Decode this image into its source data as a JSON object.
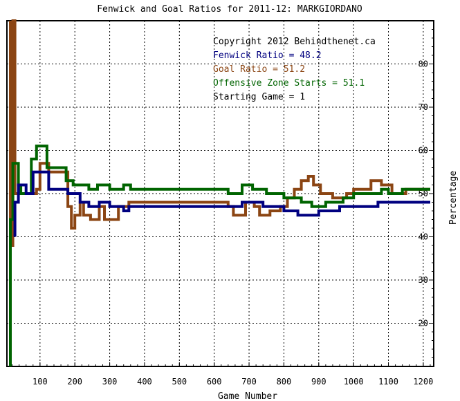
{
  "chart_data": {
    "type": "line",
    "title": "Fenwick and Goal Ratios for 2011-12: MARKGIORDANO",
    "xlabel": "Game Number",
    "ylabel": "Percentage",
    "xlim": [
      5,
      1230
    ],
    "ylim": [
      10,
      90
    ],
    "x_ticks": [
      100,
      200,
      300,
      400,
      500,
      600,
      700,
      800,
      900,
      1000,
      1100,
      1200
    ],
    "x_tick_labels": [
      "100",
      "200",
      "300",
      "400",
      "500",
      "600",
      "700",
      "800",
      "900",
      "1000",
      "1100",
      "1200"
    ],
    "y_ticks": [
      20,
      30,
      40,
      50,
      60,
      70,
      80
    ],
    "y_tick_labels": [
      "20",
      "30",
      "40",
      "50",
      "60",
      "70",
      "80"
    ],
    "y_axis_side": "right",
    "grid": true,
    "legend_placement": "top-right",
    "annotations": [
      {
        "text": "Copyright 2012 Behindthenet.ca",
        "color": "#000000"
      },
      {
        "text": "Fenwick Ratio = 48.2",
        "color": "#000080"
      },
      {
        "text": "Goal Ratio = 51.2",
        "color": "#8b4513"
      },
      {
        "text": "Offensive Zone Starts = 51.1",
        "color": "#006400"
      },
      {
        "text": "Starting Game = 1",
        "color": "#000000"
      }
    ],
    "series": [
      {
        "name": "Goal Ratio",
        "color": "#8b4513",
        "points": [
          [
            15,
            90
          ],
          [
            15,
            38
          ],
          [
            22,
            38
          ],
          [
            22,
            90
          ],
          [
            28,
            90
          ],
          [
            28,
            50
          ],
          [
            90,
            50
          ],
          [
            90,
            51
          ],
          [
            100,
            51
          ],
          [
            100,
            57
          ],
          [
            125,
            57
          ],
          [
            125,
            55
          ],
          [
            180,
            55
          ],
          [
            180,
            47
          ],
          [
            190,
            47
          ],
          [
            190,
            42
          ],
          [
            200,
            42
          ],
          [
            200,
            45
          ],
          [
            215,
            45
          ],
          [
            215,
            48
          ],
          [
            225,
            48
          ],
          [
            225,
            45
          ],
          [
            245,
            45
          ],
          [
            245,
            44
          ],
          [
            270,
            44
          ],
          [
            270,
            47
          ],
          [
            285,
            47
          ],
          [
            285,
            44
          ],
          [
            325,
            44
          ],
          [
            325,
            47
          ],
          [
            355,
            47
          ],
          [
            355,
            48
          ],
          [
            640,
            48
          ],
          [
            640,
            47
          ],
          [
            655,
            47
          ],
          [
            655,
            45
          ],
          [
            690,
            45
          ],
          [
            690,
            48
          ],
          [
            715,
            48
          ],
          [
            715,
            47
          ],
          [
            730,
            47
          ],
          [
            730,
            45
          ],
          [
            760,
            45
          ],
          [
            760,
            46
          ],
          [
            790,
            46
          ],
          [
            790,
            47
          ],
          [
            810,
            47
          ],
          [
            810,
            49
          ],
          [
            830,
            49
          ],
          [
            830,
            51
          ],
          [
            850,
            51
          ],
          [
            850,
            53
          ],
          [
            870,
            53
          ],
          [
            870,
            54
          ],
          [
            885,
            54
          ],
          [
            885,
            52
          ],
          [
            905,
            52
          ],
          [
            905,
            50
          ],
          [
            940,
            50
          ],
          [
            940,
            49
          ],
          [
            980,
            49
          ],
          [
            980,
            50
          ],
          [
            1000,
            50
          ],
          [
            1000,
            51
          ],
          [
            1050,
            51
          ],
          [
            1050,
            53
          ],
          [
            1080,
            53
          ],
          [
            1080,
            52
          ],
          [
            1110,
            52
          ],
          [
            1110,
            50
          ],
          [
            1150,
            50
          ],
          [
            1150,
            51
          ],
          [
            1220,
            51
          ]
        ]
      },
      {
        "name": "Offensive Zone Starts",
        "color": "#006400",
        "points": [
          [
            15,
            10
          ],
          [
            15,
            44
          ],
          [
            22,
            44
          ],
          [
            22,
            57
          ],
          [
            38,
            57
          ],
          [
            38,
            52
          ],
          [
            45,
            52
          ],
          [
            45,
            50
          ],
          [
            75,
            50
          ],
          [
            75,
            58
          ],
          [
            90,
            58
          ],
          [
            90,
            61
          ],
          [
            120,
            61
          ],
          [
            120,
            56
          ],
          [
            175,
            56
          ],
          [
            175,
            53
          ],
          [
            195,
            53
          ],
          [
            195,
            52
          ],
          [
            240,
            52
          ],
          [
            240,
            51
          ],
          [
            265,
            51
          ],
          [
            265,
            52
          ],
          [
            300,
            52
          ],
          [
            300,
            51
          ],
          [
            340,
            51
          ],
          [
            340,
            52
          ],
          [
            360,
            52
          ],
          [
            360,
            51
          ],
          [
            640,
            51
          ],
          [
            640,
            50
          ],
          [
            680,
            50
          ],
          [
            680,
            52
          ],
          [
            710,
            52
          ],
          [
            710,
            51
          ],
          [
            750,
            51
          ],
          [
            750,
            50
          ],
          [
            800,
            50
          ],
          [
            800,
            49
          ],
          [
            850,
            49
          ],
          [
            850,
            48
          ],
          [
            880,
            48
          ],
          [
            880,
            47
          ],
          [
            920,
            47
          ],
          [
            920,
            48
          ],
          [
            970,
            48
          ],
          [
            970,
            49
          ],
          [
            1000,
            49
          ],
          [
            1000,
            50
          ],
          [
            1080,
            50
          ],
          [
            1080,
            51
          ],
          [
            1100,
            51
          ],
          [
            1100,
            50
          ],
          [
            1140,
            50
          ],
          [
            1140,
            51
          ],
          [
            1220,
            51
          ]
        ]
      },
      {
        "name": "Fenwick Ratio",
        "color": "#000080",
        "points": [
          [
            28,
            40
          ],
          [
            28,
            48
          ],
          [
            38,
            48
          ],
          [
            38,
            52
          ],
          [
            60,
            52
          ],
          [
            60,
            50
          ],
          [
            80,
            50
          ],
          [
            80,
            55
          ],
          [
            125,
            55
          ],
          [
            125,
            51
          ],
          [
            180,
            51
          ],
          [
            180,
            50
          ],
          [
            215,
            50
          ],
          [
            215,
            48
          ],
          [
            240,
            48
          ],
          [
            240,
            47
          ],
          [
            270,
            47
          ],
          [
            270,
            48
          ],
          [
            300,
            48
          ],
          [
            300,
            47
          ],
          [
            340,
            47
          ],
          [
            340,
            46
          ],
          [
            355,
            46
          ],
          [
            355,
            47
          ],
          [
            680,
            47
          ],
          [
            680,
            48
          ],
          [
            740,
            48
          ],
          [
            740,
            47
          ],
          [
            800,
            47
          ],
          [
            800,
            46
          ],
          [
            840,
            46
          ],
          [
            840,
            45
          ],
          [
            900,
            45
          ],
          [
            900,
            46
          ],
          [
            960,
            46
          ],
          [
            960,
            47
          ],
          [
            1070,
            47
          ],
          [
            1070,
            48
          ],
          [
            1220,
            48
          ]
        ]
      }
    ]
  }
}
